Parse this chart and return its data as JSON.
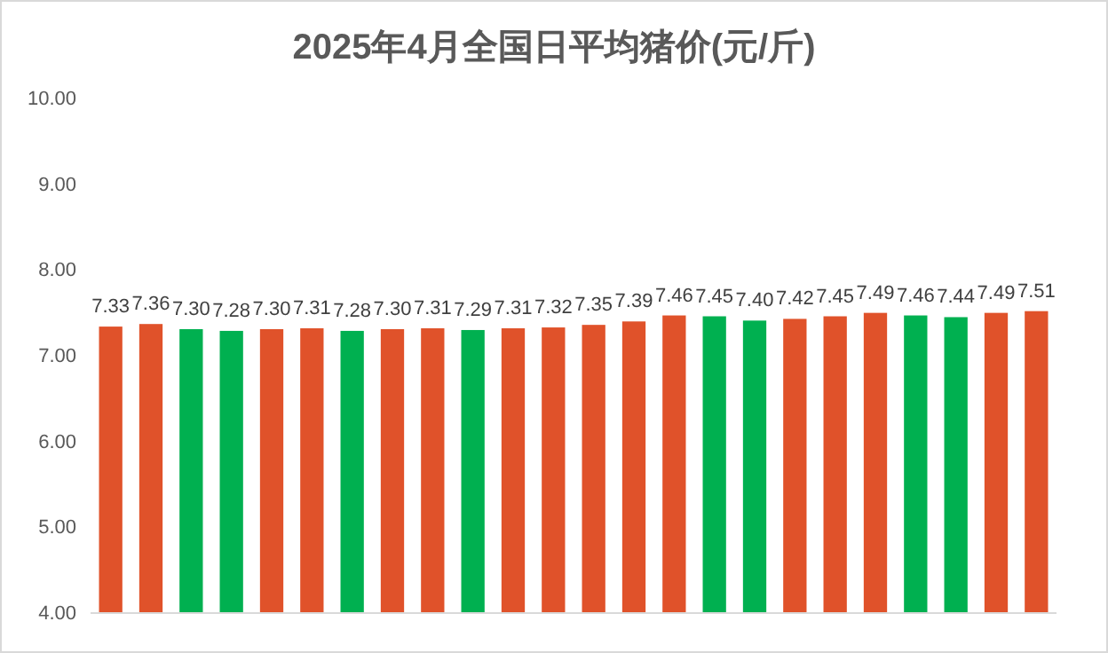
{
  "chart_data": {
    "type": "bar",
    "title": "2025年4月全国日平均猪价(元/斤)",
    "categories": [
      null,
      null,
      null,
      null,
      null,
      null,
      null,
      null,
      null,
      null,
      null,
      null,
      null,
      null,
      null,
      null,
      null,
      null,
      null,
      null,
      null,
      null,
      null,
      null
    ],
    "values": [
      7.33,
      7.36,
      7.3,
      7.28,
      7.3,
      7.31,
      7.28,
      7.3,
      7.31,
      7.29,
      7.31,
      7.32,
      7.35,
      7.39,
      7.46,
      7.45,
      7.4,
      7.42,
      7.45,
      7.49,
      7.46,
      7.44,
      7.49,
      7.51
    ],
    "value_labels": [
      "7.33",
      "7.36",
      "7.30",
      "7.28",
      "7.30",
      "7.31",
      "7.28",
      "7.30",
      "7.31",
      "7.29",
      "7.31",
      "7.32",
      "7.35",
      "7.39",
      "7.46",
      "7.45",
      "7.40",
      "7.42",
      "7.45",
      "7.49",
      "7.46",
      "7.44",
      "7.49",
      "7.51"
    ],
    "colors": [
      "#e0522a",
      "#e0522a",
      "#00b050",
      "#00b050",
      "#e0522a",
      "#e0522a",
      "#00b050",
      "#e0522a",
      "#e0522a",
      "#00b050",
      "#e0522a",
      "#e0522a",
      "#e0522a",
      "#e0522a",
      "#e0522a",
      "#00b050",
      "#00b050",
      "#e0522a",
      "#e0522a",
      "#e0522a",
      "#00b050",
      "#00b050",
      "#e0522a",
      "#e0522a"
    ],
    "ylim": [
      4,
      10
    ],
    "yticks": [
      {
        "value": 4,
        "label": "4.00"
      },
      {
        "value": 5,
        "label": "5.00"
      },
      {
        "value": 6,
        "label": "6.00"
      },
      {
        "value": 7,
        "label": "7.00"
      },
      {
        "value": 8,
        "label": "8.00"
      },
      {
        "value": 9,
        "label": "9.00"
      },
      {
        "value": 10,
        "label": "10.00"
      }
    ],
    "grid": false
  }
}
